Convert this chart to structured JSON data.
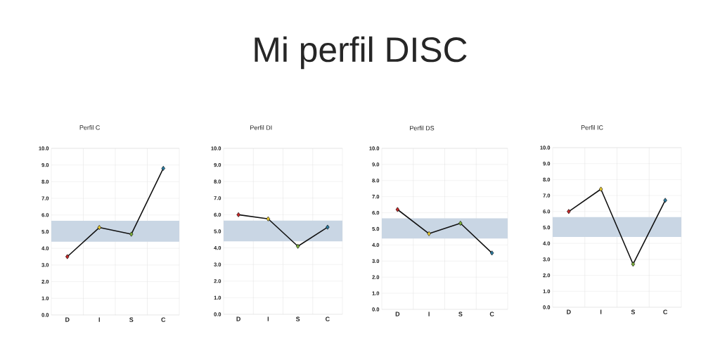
{
  "chart_data": [
    {
      "type": "other",
      "title": "Mi perfil DISC"
    },
    {
      "type": "line",
      "title": "Perfil C",
      "categories": [
        "D",
        "I",
        "S",
        "C"
      ],
      "color": "#111111",
      "marker": "diamond",
      "grid": true,
      "values": [
        3.5,
        5.25,
        4.85,
        8.8
      ],
      "colors": [
        "#c62828",
        "#e8c92e",
        "#7cae3c",
        "#2b7a9e"
      ],
      "ylim": [
        0,
        10
      ],
      "yticks": [
        {
          "value": 0,
          "label": "0.0"
        },
        {
          "value": 1,
          "label": "1.0"
        },
        {
          "value": 2,
          "label": "2.0"
        },
        {
          "value": 3,
          "label": "3.0"
        },
        {
          "value": 4,
          "label": "4.0"
        },
        {
          "value": 5,
          "label": "5.0"
        },
        {
          "value": 6,
          "label": "6.0"
        },
        {
          "value": 7,
          "label": "7.0"
        },
        {
          "value": 8,
          "label": "8.0"
        },
        {
          "value": 9,
          "label": "9.0"
        },
        {
          "value": 10,
          "label": "10.0"
        }
      ],
      "bands": [
        {
          "axis": "y",
          "from": 4.4,
          "to": 5.65,
          "color": "#c9d6e4"
        }
      ]
    },
    {
      "type": "line",
      "title": "Perfil DI",
      "categories": [
        "D",
        "I",
        "S",
        "C"
      ],
      "color": "#111111",
      "marker": "diamond",
      "grid": true,
      "values": [
        6.0,
        5.75,
        4.1,
        5.25
      ],
      "colors": [
        "#c62828",
        "#e8c92e",
        "#7cae3c",
        "#2b7a9e"
      ],
      "ylim": [
        0,
        10
      ],
      "yticks": [
        {
          "value": 0,
          "label": "0.0"
        },
        {
          "value": 1,
          "label": "1.0"
        },
        {
          "value": 2,
          "label": "2.0"
        },
        {
          "value": 3,
          "label": "3.0"
        },
        {
          "value": 4,
          "label": "4.0"
        },
        {
          "value": 5,
          "label": "5.0"
        },
        {
          "value": 6,
          "label": "6.0"
        },
        {
          "value": 7,
          "label": "7.0"
        },
        {
          "value": 8,
          "label": "8.0"
        },
        {
          "value": 9,
          "label": "9.0"
        },
        {
          "value": 10,
          "label": "10.0"
        }
      ],
      "bands": [
        {
          "axis": "y",
          "from": 4.4,
          "to": 5.65,
          "color": "#c9d6e4"
        }
      ]
    },
    {
      "type": "line",
      "title": "Perfil DS",
      "categories": [
        "D",
        "I",
        "S",
        "C"
      ],
      "color": "#111111",
      "marker": "diamond",
      "grid": true,
      "values": [
        6.2,
        4.7,
        5.35,
        3.5
      ],
      "colors": [
        "#c62828",
        "#e8c92e",
        "#7cae3c",
        "#2b7a9e"
      ],
      "ylim": [
        0,
        10
      ],
      "yticks": [
        {
          "value": 0,
          "label": "0.0"
        },
        {
          "value": 1,
          "label": "1.0"
        },
        {
          "value": 2,
          "label": "2.0"
        },
        {
          "value": 3,
          "label": "3.0"
        },
        {
          "value": 4,
          "label": "4.0"
        },
        {
          "value": 5,
          "label": "5.0"
        },
        {
          "value": 6,
          "label": "6.0"
        },
        {
          "value": 7,
          "label": "7.0"
        },
        {
          "value": 8,
          "label": "8.0"
        },
        {
          "value": 9,
          "label": "9.0"
        },
        {
          "value": 10,
          "label": "10.0"
        }
      ],
      "bands": [
        {
          "axis": "y",
          "from": 4.4,
          "to": 5.65,
          "color": "#c9d6e4"
        }
      ]
    },
    {
      "type": "line",
      "title": "Perfil IC",
      "categories": [
        "D",
        "I",
        "S",
        "C"
      ],
      "color": "#111111",
      "marker": "diamond",
      "grid": true,
      "values": [
        6.0,
        7.4,
        2.7,
        6.7
      ],
      "colors": [
        "#c62828",
        "#e8c92e",
        "#7cae3c",
        "#2b7a9e"
      ],
      "ylim": [
        0,
        10
      ],
      "yticks": [
        {
          "value": 0,
          "label": "0.0"
        },
        {
          "value": 1,
          "label": "1.0"
        },
        {
          "value": 2,
          "label": "2.0"
        },
        {
          "value": 3,
          "label": "3.0"
        },
        {
          "value": 4,
          "label": "4.0"
        },
        {
          "value": 5,
          "label": "5.0"
        },
        {
          "value": 6,
          "label": "6.0"
        },
        {
          "value": 7,
          "label": "7.0"
        },
        {
          "value": 8,
          "label": "8.0"
        },
        {
          "value": 9,
          "label": "9.0"
        },
        {
          "value": 10,
          "label": "10.0"
        }
      ],
      "bands": [
        {
          "axis": "y",
          "from": 4.4,
          "to": 5.65,
          "color": "#c9d6e4"
        }
      ]
    }
  ]
}
